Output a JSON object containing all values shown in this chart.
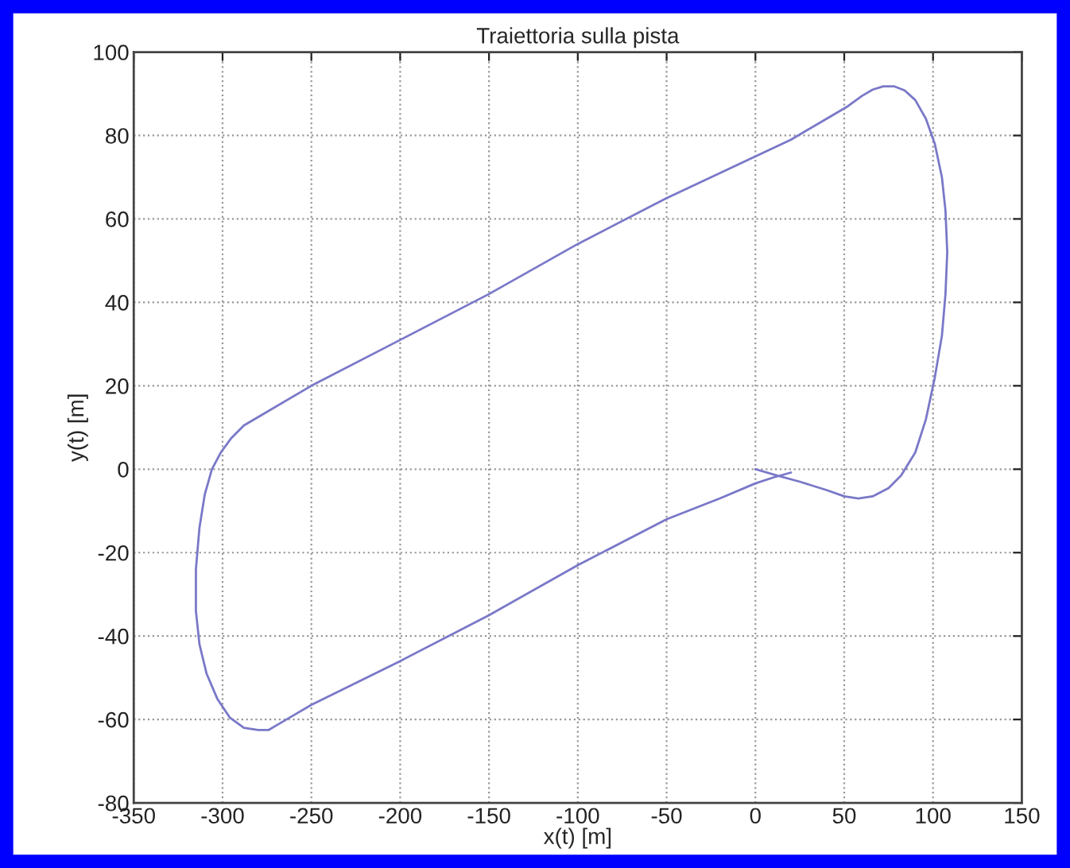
{
  "chart_data": {
    "type": "line",
    "title": "Traiettoria sulla pista",
    "xlabel": "x(t) [m]",
    "ylabel": "y(t) [m]",
    "series": [
      {
        "color": "#7a78c8",
        "x": [
          0,
          12,
          25,
          40,
          50,
          58,
          66,
          75,
          82,
          90,
          96,
          101,
          105,
          107,
          108,
          107,
          105,
          101,
          96,
          90,
          84,
          78,
          72,
          66,
          60,
          52,
          40,
          20,
          0,
          -50,
          -100,
          -150,
          -200,
          -250,
          -280,
          -288,
          -295,
          -301,
          -306,
          -310,
          -313,
          -315,
          -315,
          -313,
          -309,
          -303,
          -296,
          -288,
          -280,
          -274,
          -268,
          -260,
          -250,
          -200,
          -150,
          -100,
          -50,
          -20,
          0,
          10,
          20
        ],
        "values": [
          0,
          -1.5,
          -3,
          -5,
          -6.5,
          -7,
          -6.5,
          -4.5,
          -1.5,
          4,
          12,
          22,
          32,
          42,
          52,
          62,
          70,
          78,
          84,
          88.5,
          90.8,
          91.8,
          91.8,
          91,
          89.5,
          87,
          84,
          79,
          75,
          65,
          54,
          42,
          31,
          20,
          12.5,
          10.5,
          7.5,
          4,
          0,
          -6,
          -14,
          -24,
          -34,
          -42,
          -49,
          -55,
          -59.5,
          -62,
          -62.5,
          -62.5,
          -61,
          -59,
          -56.5,
          -46,
          -35,
          -23,
          -12,
          -7,
          -3.4,
          -2,
          -0.8
        ]
      }
    ],
    "xlim": [
      -350,
      150
    ],
    "xticks": [
      -350,
      -300,
      -250,
      -200,
      -150,
      -100,
      -50,
      0,
      50,
      100,
      150
    ],
    "ylim": [
      -80,
      100
    ],
    "yticks": [
      -80,
      -60,
      -40,
      -20,
      0,
      20,
      40,
      60,
      80,
      100
    ],
    "grid": true,
    "line_style": "solid"
  }
}
